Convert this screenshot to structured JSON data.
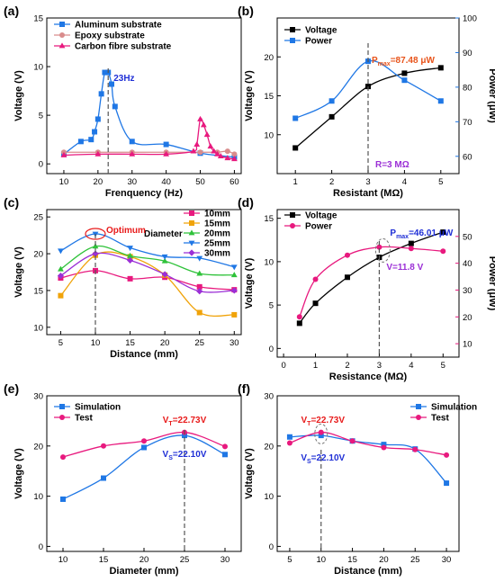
{
  "chart_data": [
    {
      "panel": "(a)",
      "type": "line",
      "xlabel": "Frenquency (Hz)",
      "ylabel": "Voltage (V)",
      "xlim": [
        5,
        62
      ],
      "ylim": [
        -1,
        15
      ],
      "xticks": [
        10,
        20,
        30,
        40,
        50,
        60
      ],
      "yticks": [
        0,
        5,
        10,
        15
      ],
      "legend_position": "top-left",
      "series": [
        {
          "name": "Aluminum substrate",
          "color": "#1f77e5",
          "marker": "square",
          "x": [
            10,
            15,
            18,
            19,
            20,
            21,
            22,
            23,
            24,
            25,
            30,
            40,
            50,
            60
          ],
          "y": [
            1.0,
            2.3,
            2.5,
            3.3,
            4.6,
            7.2,
            9.4,
            9.4,
            8.2,
            5.9,
            2.3,
            2.0,
            1.1,
            0.7
          ]
        },
        {
          "name": "Epoxy substrate",
          "color": "#d98c8c",
          "marker": "circle",
          "x": [
            10,
            20,
            30,
            40,
            50,
            55,
            58,
            60
          ],
          "y": [
            1.2,
            1.2,
            1.2,
            1.2,
            1.2,
            1.2,
            1.3,
            1.0
          ]
        },
        {
          "name": "Carbon fibre substrate",
          "color": "#e8197e",
          "marker": "triangle",
          "x": [
            10,
            20,
            30,
            40,
            48,
            49,
            50,
            51,
            52,
            53,
            54,
            55,
            56,
            58,
            60
          ],
          "y": [
            0.9,
            1.0,
            1.0,
            1.0,
            1.3,
            2.0,
            4.6,
            4.0,
            3.0,
            1.8,
            1.3,
            1.0,
            0.8,
            0.6,
            0.5
          ]
        }
      ],
      "annotations": [
        {
          "text": "23Hz",
          "x": 23,
          "color": "#1f2fd6"
        }
      ]
    },
    {
      "panel": "(b)",
      "type": "line",
      "xlabel": "Resistant (MΩ)",
      "ylabel": "Voltage (V)",
      "ylabel_right": "Power (μW)",
      "xlim": [
        0.5,
        5.5
      ],
      "ylim": [
        5,
        25
      ],
      "ylim_right": [
        55,
        100
      ],
      "xticks": [
        1,
        2,
        3,
        4,
        5
      ],
      "yticks": [
        10,
        15,
        20
      ],
      "yticks_right": [
        60,
        70,
        80,
        90,
        100
      ],
      "legend_position": "top-left",
      "series": [
        {
          "name": "Voltage",
          "color": "#000000",
          "marker": "square",
          "axis": "left",
          "x": [
            1,
            2,
            3,
            4,
            5
          ],
          "y": [
            8.3,
            12.3,
            16.2,
            17.9,
            18.6
          ]
        },
        {
          "name": "Power",
          "color": "#1f77e5",
          "marker": "square",
          "axis": "right",
          "x": [
            1,
            2,
            3,
            4,
            5
          ],
          "y": [
            71,
            76,
            87.48,
            82,
            76
          ]
        }
      ],
      "annotations": [
        {
          "text": "P",
          "sub": "max",
          "rest": "=87.48 μW",
          "color": "#e8541b"
        },
        {
          "text": "R=3 MΩ",
          "color": "#9b2fd6"
        }
      ]
    },
    {
      "panel": "(c)",
      "type": "line",
      "xlabel": "Distance (mm)",
      "ylabel": "Voltage (V)",
      "xlim": [
        3,
        31
      ],
      "ylim": [
        9,
        26
      ],
      "xticks": [
        5,
        10,
        15,
        20,
        25,
        30
      ],
      "yticks": [
        10,
        15,
        20,
        25
      ],
      "legend_title": "Diameter",
      "legend_position": "top-right",
      "series": [
        {
          "name": "10mm",
          "color": "#e8197e",
          "marker": "square",
          "x": [
            5,
            10,
            15,
            20,
            25,
            30
          ],
          "y": [
            16.7,
            17.7,
            16.6,
            16.8,
            15.5,
            15.1
          ]
        },
        {
          "name": "15mm",
          "color": "#f0a30a",
          "marker": "square",
          "x": [
            5,
            10,
            15,
            20,
            25,
            30
          ],
          "y": [
            14.3,
            19.8,
            19.6,
            17.1,
            12.0,
            11.7
          ]
        },
        {
          "name": "20mm",
          "color": "#2fc23a",
          "marker": "triangle",
          "x": [
            5,
            10,
            15,
            20,
            25,
            30
          ],
          "y": [
            17.9,
            21.0,
            19.7,
            19.0,
            17.3,
            17.1
          ]
        },
        {
          "name": "25mm",
          "color": "#1f77e5",
          "marker": "triangle-down",
          "x": [
            5,
            10,
            15,
            20,
            25,
            30
          ],
          "y": [
            20.4,
            22.7,
            20.8,
            19.6,
            19.4,
            18.2
          ]
        },
        {
          "name": "30mm",
          "color": "#9b2fd6",
          "marker": "diamond",
          "x": [
            5,
            10,
            15,
            20,
            25,
            30
          ],
          "y": [
            17.0,
            20.0,
            19.1,
            17.2,
            14.9,
            15.0
          ]
        }
      ],
      "annotations": [
        {
          "text": "Optimum",
          "color": "#e81b1b"
        }
      ]
    },
    {
      "panel": "(d)",
      "type": "line",
      "xlabel": "Resistance (MΩ)",
      "ylabel": "Voltage (V)",
      "ylabel_right": "Power (μW)",
      "xlim": [
        -0.2,
        5.5
      ],
      "ylim": [
        -1,
        16
      ],
      "ylim_right": [
        5,
        60
      ],
      "xticks": [
        0,
        1,
        2,
        3,
        4,
        5
      ],
      "yticks": [
        0,
        5,
        10,
        15
      ],
      "yticks_right": [
        10,
        20,
        30,
        40,
        50
      ],
      "legend_position": "top-left",
      "series": [
        {
          "name": "Voltage",
          "color": "#000000",
          "marker": "square",
          "axis": "left",
          "x": [
            0.5,
            1,
            2,
            3,
            4,
            5
          ],
          "y": [
            2.9,
            5.2,
            8.2,
            10.5,
            12.1,
            13.4
          ]
        },
        {
          "name": "Power",
          "color": "#e8197e",
          "marker": "circle",
          "axis": "right",
          "x": [
            0.5,
            1,
            2,
            3,
            4,
            5
          ],
          "y": [
            20,
            34,
            43,
            46.01,
            45.5,
            44.5
          ]
        }
      ],
      "annotations": [
        {
          "text": "P",
          "sub": "max",
          "rest": "=46.01 μW",
          "color": "#1f2fd6"
        },
        {
          "text": "V=11.8 V",
          "color": "#9b2fd6"
        }
      ]
    },
    {
      "panel": "(e)",
      "type": "line",
      "xlabel": "Diameter (mm)",
      "ylabel": "Voltage (V)",
      "xlim": [
        8,
        32
      ],
      "ylim": [
        -1,
        30
      ],
      "xticks": [
        10,
        15,
        20,
        25,
        30
      ],
      "yticks": [
        0,
        10,
        20,
        30
      ],
      "legend_position": "top-left",
      "series": [
        {
          "name": "Simulation",
          "color": "#1f77e5",
          "marker": "square",
          "x": [
            10,
            15,
            20,
            25,
            30
          ],
          "y": [
            9.4,
            13.6,
            19.7,
            22.1,
            18.3
          ]
        },
        {
          "name": "Test",
          "color": "#e8197e",
          "marker": "circle",
          "x": [
            10,
            15,
            20,
            25,
            30
          ],
          "y": [
            17.8,
            20.0,
            21.0,
            22.73,
            19.9
          ]
        }
      ],
      "annotations": [
        {
          "text": "V",
          "sub": "T",
          "rest": "=22.73V",
          "color": "#e81b1b"
        },
        {
          "text": "V",
          "sub": "S",
          "rest": "=22.10V",
          "color": "#1f2fd6"
        }
      ]
    },
    {
      "panel": "(f)",
      "type": "line",
      "xlabel": "Distance (mm)",
      "ylabel": "Voltage (V)",
      "xlim": [
        3,
        32
      ],
      "ylim": [
        -1,
        30
      ],
      "xticks": [
        5,
        10,
        15,
        20,
        25,
        30
      ],
      "yticks": [
        0,
        10,
        20,
        30
      ],
      "legend_position": "top-right",
      "series": [
        {
          "name": "Simulation",
          "color": "#1f77e5",
          "marker": "square",
          "x": [
            5,
            10,
            15,
            20,
            25,
            30
          ],
          "y": [
            21.8,
            22.1,
            21.0,
            20.3,
            19.4,
            12.6
          ]
        },
        {
          "name": "Test",
          "color": "#e8197e",
          "marker": "circle",
          "x": [
            5,
            10,
            15,
            20,
            25,
            30
          ],
          "y": [
            20.6,
            22.73,
            21.0,
            19.7,
            19.3,
            18.2
          ]
        }
      ],
      "annotations": [
        {
          "text": "V",
          "sub": "T",
          "rest": "=22.73V",
          "color": "#e81b1b"
        },
        {
          "text": "V",
          "sub": "S",
          "rest": "=22.10V",
          "color": "#1f2fd6"
        }
      ]
    }
  ]
}
